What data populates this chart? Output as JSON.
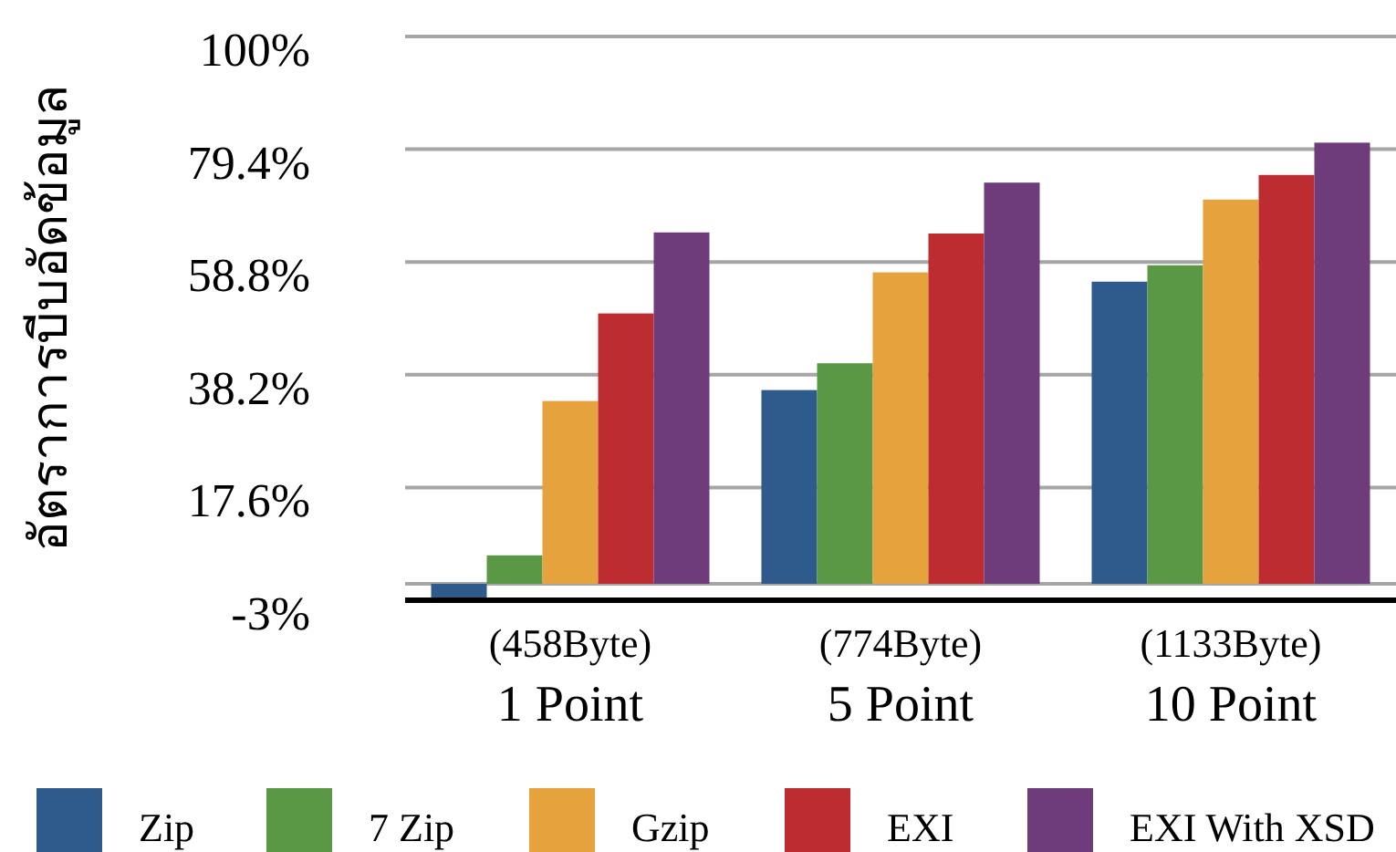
{
  "chart_data": {
    "type": "bar",
    "ylabel": "อัตราการบีบอัดข้อมูล",
    "categories": [
      "(458Byte)\n1 Point",
      "(774Byte)\n5 Point",
      "(1133Byte)\n10 Point"
    ],
    "series": [
      {
        "name": "Zip",
        "color": "#2e5a8c",
        "values": [
          -3,
          35.4,
          55.2
        ]
      },
      {
        "name": "7 Zip",
        "color": "#5b9845",
        "values": [
          5.2,
          40.3,
          58.2
        ]
      },
      {
        "name": "Gzip",
        "color": "#e6a23c",
        "values": [
          33.4,
          56.9,
          70.2
        ]
      },
      {
        "name": "EXI",
        "color": "#bc2c30",
        "values": [
          49.4,
          64.0,
          74.7
        ]
      },
      {
        "name": "EXI With XSD",
        "color": "#6e3b7b",
        "values": [
          64.2,
          73.3,
          80.6
        ]
      }
    ],
    "ylim": [
      -3,
      100
    ],
    "yticks": [
      {
        "value": -3,
        "label": "-3%"
      },
      {
        "value": 17.6,
        "label": "17.6%"
      },
      {
        "value": 38.2,
        "label": "38.2%"
      },
      {
        "value": 58.8,
        "label": "58.8%"
      },
      {
        "value": 79.4,
        "label": "79.4%"
      },
      {
        "value": 100,
        "label": "100%"
      }
    ],
    "ref_lines": [
      {
        "axis": "y",
        "value": 0,
        "color": "#a6a6a6"
      }
    ],
    "grid": "y",
    "legend": "bottom"
  }
}
